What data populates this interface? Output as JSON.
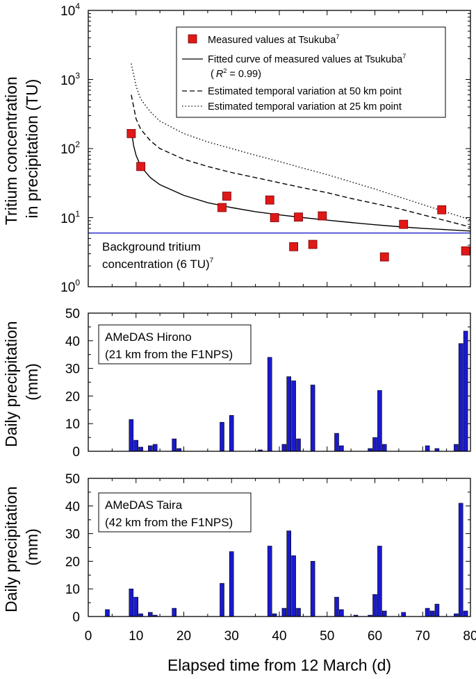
{
  "chart_data": [
    {
      "type": "scatter",
      "panel": "tritium",
      "ylabel_line1": "Tritium concentration",
      "ylabel_line2": "in precipitation (TU)",
      "yscale": "log",
      "ylim": [
        1,
        10000
      ],
      "xlim": [
        0,
        80
      ],
      "ytick_mantissa": "10",
      "ytick_exponents": [
        "0",
        "1",
        "2",
        "3",
        "4"
      ],
      "legend_position": "top-right",
      "legend": {
        "measured": {
          "text": "Measured values at Tsukuba",
          "sup": "7"
        },
        "fitted": {
          "text": "Fitted curve of measured values at Tsukuba",
          "sup": "7"
        },
        "r2_open": "(",
        "r2_sym": "R",
        "r2_sup": "2",
        "r2_value": " = 0.99)",
        "est50": "Estimated temporal variation at 50 km point",
        "est25": "Estimated temporal variation at 25 km point"
      },
      "background": {
        "value": 6,
        "label_line1": "Background tritium",
        "label_line2": "concentration (6 TU)",
        "label_sup": "7",
        "color": "#2a2acc"
      },
      "marker_color": "#e01818",
      "series": [
        {
          "name": "Measured values at Tsukuba",
          "points": [
            [
              9,
              165
            ],
            [
              11,
              55
            ],
            [
              28,
              14
            ],
            [
              29,
              20.5
            ],
            [
              38,
              18
            ],
            [
              39,
              10
            ],
            [
              44,
              10.2
            ],
            [
              49,
              10.6
            ],
            [
              43,
              3.8
            ],
            [
              47,
              4.1
            ],
            [
              62,
              2.7
            ],
            [
              66,
              8
            ],
            [
              74,
              13
            ],
            [
              79,
              3.3
            ]
          ]
        },
        {
          "name": "Fitted curve of measured values at Tsukuba",
          "style": "solid",
          "points": [
            [
              9,
              190
            ],
            [
              9.5,
              110
            ],
            [
              10,
              80
            ],
            [
              11,
              55
            ],
            [
              13,
              38
            ],
            [
              15,
              30
            ],
            [
              20,
              21
            ],
            [
              25,
              16.5
            ],
            [
              30,
              14
            ],
            [
              35,
              12.2
            ],
            [
              40,
              11
            ],
            [
              45,
              10
            ],
            [
              50,
              9.2
            ],
            [
              55,
              8.5
            ],
            [
              60,
              7.9
            ],
            [
              65,
              7.4
            ],
            [
              70,
              7
            ],
            [
              75,
              6.7
            ],
            [
              80,
              6.4
            ]
          ]
        },
        {
          "name": "Estimated temporal variation at 50 km point",
          "style": "dashed",
          "points": [
            [
              9,
              600
            ],
            [
              10,
              270
            ],
            [
              11,
              190
            ],
            [
              13,
              130
            ],
            [
              15,
              100
            ],
            [
              20,
              70
            ],
            [
              25,
              55
            ],
            [
              30,
              45
            ],
            [
              35,
              38
            ],
            [
              40,
              32
            ],
            [
              45,
              27
            ],
            [
              50,
              23
            ],
            [
              55,
              19
            ],
            [
              60,
              16
            ],
            [
              65,
              13.5
            ],
            [
              70,
              11
            ],
            [
              75,
              9
            ],
            [
              80,
              7.3
            ]
          ]
        },
        {
          "name": "Estimated temporal variation at 25 km point",
          "style": "dotted",
          "points": [
            [
              9,
              1700
            ],
            [
              10,
              800
            ],
            [
              11,
              520
            ],
            [
              13,
              340
            ],
            [
              15,
              250
            ],
            [
              20,
              165
            ],
            [
              25,
              125
            ],
            [
              30,
              100
            ],
            [
              35,
              80
            ],
            [
              40,
              65
            ],
            [
              45,
              52
            ],
            [
              50,
              42
            ],
            [
              55,
              33
            ],
            [
              60,
              26
            ],
            [
              65,
              20
            ],
            [
              70,
              15.5
            ],
            [
              75,
              12
            ],
            [
              80,
              9.3
            ]
          ]
        }
      ]
    },
    {
      "type": "bar",
      "panel": "hirono",
      "ylabel_line1": "Daily precipitation",
      "ylabel_line2": "(mm)",
      "ylim": [
        0,
        50
      ],
      "xlim": [
        0,
        80
      ],
      "yticks": [
        "0",
        "10",
        "20",
        "30",
        "40",
        "50"
      ],
      "label_line1": "AMeDAS Hirono",
      "label_line2": "(21 km from the F1NPS)",
      "bar_color": "#1a1acc",
      "x": [
        9,
        10,
        11,
        13,
        14,
        18,
        19,
        28,
        30,
        36,
        38,
        41,
        42,
        43,
        44,
        47,
        52,
        53,
        59,
        60,
        61,
        62,
        71,
        73,
        77,
        78,
        79
      ],
      "values": [
        11.5,
        4,
        1.5,
        2,
        2.5,
        4.5,
        1,
        10.5,
        13,
        0.5,
        34,
        2.5,
        27,
        25.5,
        4.5,
        24,
        6.5,
        2,
        1,
        5,
        22,
        2.5,
        2,
        1,
        2.5,
        39,
        43.5
      ]
    },
    {
      "type": "bar",
      "panel": "taira",
      "ylabel_line1": "Daily precipitation",
      "ylabel_line2": "(mm)",
      "ylim": [
        0,
        50
      ],
      "xlim": [
        0,
        80
      ],
      "yticks": [
        "0",
        "10",
        "20",
        "30",
        "40",
        "50"
      ],
      "xticks": [
        "0",
        "10",
        "20",
        "30",
        "40",
        "50",
        "60",
        "70",
        "80"
      ],
      "xlabel": "Elapsed time from 12 March (d)",
      "label_line1": "AMeDAS Taira",
      "label_line2": "(42 km from the F1NPS)",
      "bar_color": "#1a1acc",
      "x": [
        4,
        9,
        10,
        11,
        13,
        14,
        18,
        28,
        30,
        38,
        39,
        41,
        42,
        43,
        44,
        47,
        52,
        53,
        56,
        59,
        60,
        61,
        62,
        66,
        71,
        72,
        73,
        77,
        78,
        79
      ],
      "values": [
        2.5,
        10,
        7,
        1,
        1.5,
        0.5,
        3,
        12,
        23.5,
        25.5,
        1,
        3,
        31,
        22,
        3,
        20,
        7,
        2.5,
        0.5,
        0.5,
        8,
        25.5,
        2,
        1.5,
        3,
        2,
        4.5,
        1,
        41,
        2
      ]
    }
  ]
}
